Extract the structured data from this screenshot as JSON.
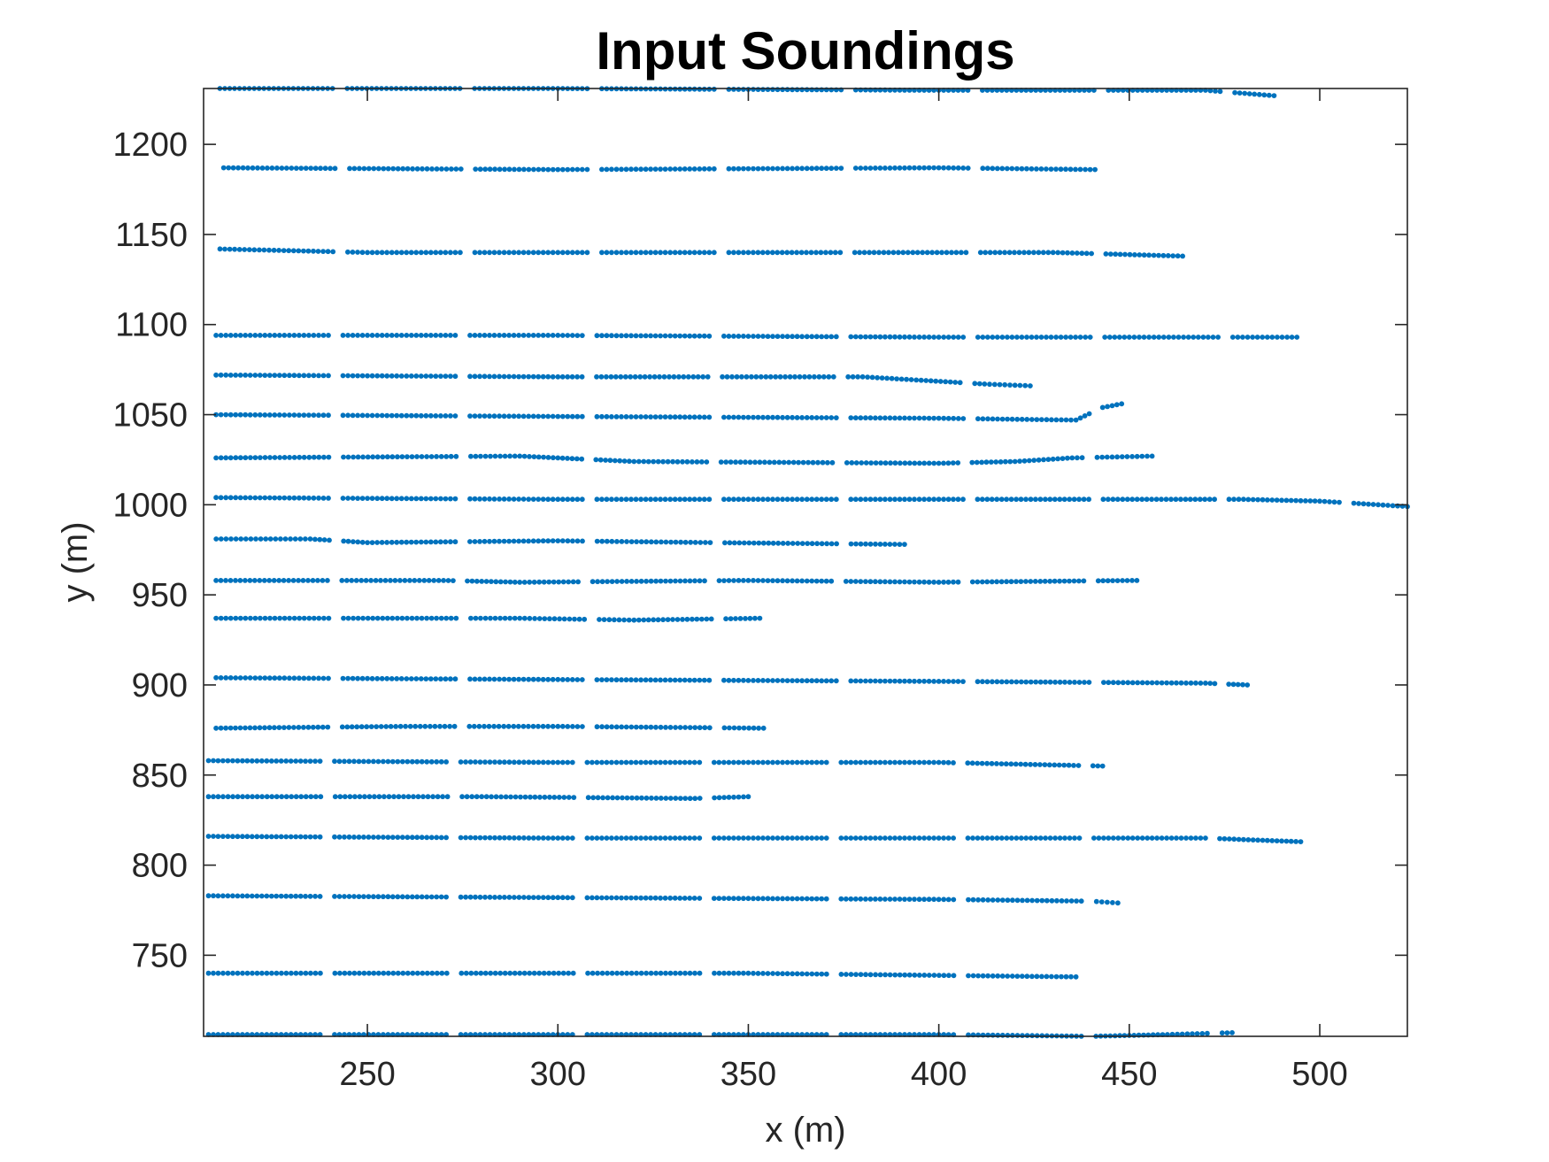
{
  "chart_data": {
    "type": "scatter",
    "title": "Input Soundings",
    "xlabel": "x (m)",
    "ylabel": "y (m)",
    "xlim": [
      207,
      523
    ],
    "ylim": [
      705,
      1231
    ],
    "xticks": [
      250,
      300,
      350,
      400,
      450,
      500
    ],
    "yticks": [
      750,
      800,
      850,
      900,
      950,
      1000,
      1050,
      1100,
      1150,
      1200
    ],
    "grid": false,
    "legend": "none",
    "marker_color": "#0072BD",
    "series": [
      {
        "values": [
          [
            210,
            1231
          ],
          [
            300,
            1231
          ],
          [
            400,
            1230
          ],
          [
            470,
            1230
          ],
          [
            488,
            1227
          ]
        ]
      },
      {
        "values": [
          [
            211,
            1187
          ],
          [
            300,
            1186
          ],
          [
            400,
            1187
          ],
          [
            441,
            1186
          ]
        ]
      },
      {
        "values": [
          [
            210,
            1142
          ],
          [
            250,
            1140
          ],
          [
            350,
            1140
          ],
          [
            430,
            1140
          ],
          [
            464,
            1138
          ]
        ]
      },
      {
        "values": [
          [
            209,
            1094
          ],
          [
            300,
            1094
          ],
          [
            400,
            1093
          ],
          [
            450,
            1093
          ],
          [
            494,
            1093
          ]
        ]
      },
      {
        "values": [
          [
            209,
            1072
          ],
          [
            300,
            1071
          ],
          [
            380,
            1071
          ],
          [
            412,
            1067
          ],
          [
            424,
            1066
          ]
        ]
      },
      {
        "values": [
          [
            209,
            1050
          ],
          [
            300,
            1049
          ],
          [
            400,
            1048
          ],
          [
            436,
            1047
          ],
          [
            443,
            1054
          ],
          [
            448,
            1056
          ]
        ]
      },
      {
        "values": [
          [
            209,
            1026
          ],
          [
            290,
            1027
          ],
          [
            320,
            1024
          ],
          [
            400,
            1023
          ],
          [
            420,
            1024
          ],
          [
            435,
            1026
          ],
          [
            456,
            1027
          ]
        ]
      },
      {
        "values": [
          [
            209,
            1004
          ],
          [
            300,
            1003
          ],
          [
            400,
            1003
          ],
          [
            480,
            1003
          ],
          [
            500,
            1002
          ],
          [
            523,
            999
          ]
        ]
      },
      {
        "values": [
          [
            209,
            981
          ],
          [
            235,
            981
          ],
          [
            250,
            979
          ],
          [
            300,
            980
          ],
          [
            340,
            979
          ],
          [
            391,
            978
          ]
        ]
      },
      {
        "values": [
          [
            209,
            958
          ],
          [
            270,
            958
          ],
          [
            290,
            957
          ],
          [
            350,
            958
          ],
          [
            400,
            957
          ],
          [
            452,
            958
          ]
        ]
      },
      {
        "values": [
          [
            209,
            937
          ],
          [
            290,
            937
          ],
          [
            320,
            936
          ],
          [
            353,
            937
          ]
        ]
      },
      {
        "values": [
          [
            209,
            904
          ],
          [
            300,
            903
          ],
          [
            400,
            902
          ],
          [
            470,
            901
          ],
          [
            481,
            900
          ]
        ]
      },
      {
        "values": [
          [
            209,
            876
          ],
          [
            260,
            877
          ],
          [
            300,
            877
          ],
          [
            354,
            876
          ]
        ]
      },
      {
        "values": [
          [
            207,
            858
          ],
          [
            300,
            857
          ],
          [
            400,
            857
          ],
          [
            443,
            855
          ]
        ]
      },
      {
        "values": [
          [
            207,
            838
          ],
          [
            280,
            838
          ],
          [
            336,
            837
          ],
          [
            350,
            838
          ]
        ]
      },
      {
        "values": [
          [
            207,
            816
          ],
          [
            300,
            815
          ],
          [
            400,
            815
          ],
          [
            470,
            815
          ],
          [
            495,
            813
          ]
        ]
      },
      {
        "values": [
          [
            207,
            783
          ],
          [
            300,
            782
          ],
          [
            400,
            781
          ],
          [
            440,
            780
          ],
          [
            447,
            779
          ]
        ]
      },
      {
        "values": [
          [
            207,
            740
          ],
          [
            290,
            740
          ],
          [
            350,
            740
          ],
          [
            436,
            738
          ]
        ]
      },
      {
        "values": [
          [
            207,
            706
          ],
          [
            300,
            706
          ],
          [
            400,
            706
          ],
          [
            440,
            705
          ],
          [
            460,
            706
          ],
          [
            477,
            707
          ]
        ]
      }
    ]
  }
}
